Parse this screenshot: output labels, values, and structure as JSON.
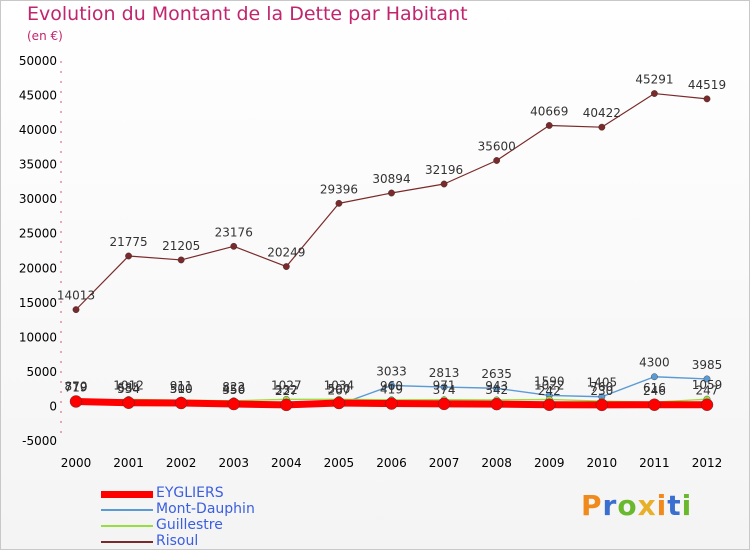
{
  "header": {
    "title": "Evolution du Montant de la Dette par Habitant",
    "unit": "(en €)"
  },
  "logo": {
    "text": "Proxiti",
    "colors": [
      "#f08a1c",
      "#3a6fd0",
      "#6ab82e",
      "#e8b02a"
    ]
  },
  "colors": {
    "title": "#c0256e",
    "legend_text": "#3a5ee0",
    "axis_text": "#000000",
    "grid_tick": "#e05080"
  },
  "chart_data": {
    "type": "line",
    "title": "Evolution du Montant de la Dette par Habitant",
    "subtitle": "(en €)",
    "xlabel": "",
    "ylabel": "",
    "x": [
      2000,
      2001,
      2002,
      2003,
      2004,
      2005,
      2006,
      2007,
      2008,
      2009,
      2010,
      2011,
      2012
    ],
    "ylim": [
      -5000,
      50000
    ],
    "yticks": [
      -5000,
      0,
      5000,
      10000,
      15000,
      20000,
      25000,
      30000,
      35000,
      40000,
      45000,
      50000
    ],
    "grid": false,
    "legend_position": "bottom-left",
    "series": [
      {
        "name": "EYGLIERS",
        "color": "#ff0000",
        "values": [
          719,
          534,
          500,
          350,
          227,
          500,
          419,
          374,
          342,
          242,
          230,
          246,
          247
        ],
        "labels": [
          "719",
          "534",
          "500",
          "350",
          "227",
          "500",
          "419",
          "374",
          "342",
          "242",
          "230",
          "246",
          "247"
        ]
      },
      {
        "name": "Mont-Dauphin",
        "color": "#5b9bd5",
        "values": [
          870,
          685,
          510,
          456,
          332,
          267,
          3033,
          2813,
          2635,
          1590,
          1405,
          4300,
          3985
        ],
        "labels": [
          "870",
          "685",
          "510",
          "456",
          "332",
          "267",
          "3033",
          "2813",
          "2635",
          "1590",
          "1405",
          "4300",
          "3985"
        ]
      },
      {
        "name": "Guillestre",
        "color": "#99dd44",
        "values": [
          779,
          1012,
          911,
          822,
          1027,
          1034,
          960,
          971,
          943,
          1022,
          760,
          616,
          1059
        ],
        "labels": [
          "779",
          "1012",
          "911",
          "822",
          "1027",
          "1034",
          "960",
          "971",
          "943",
          "1022",
          "760",
          "616",
          "1059"
        ]
      },
      {
        "name": "Risoul",
        "color": "#7a2a2a",
        "values": [
          14013,
          21775,
          21205,
          23176,
          20249,
          29396,
          30894,
          32196,
          35600,
          40669,
          40422,
          45291,
          44519
        ],
        "labels": [
          "14013",
          "21775",
          "21205",
          "23176",
          "20249",
          "29396",
          "30894",
          "32196",
          "35600",
          "40669",
          "40422",
          "45291",
          "44519"
        ]
      }
    ]
  }
}
